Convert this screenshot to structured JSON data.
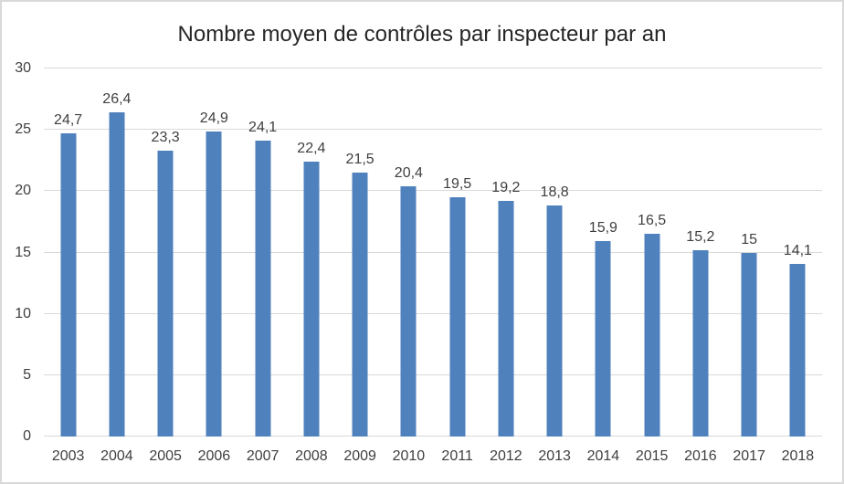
{
  "chart_data": {
    "type": "bar",
    "title": "Nombre moyen de contrôles par inspecteur par an",
    "categories": [
      "2003",
      "2004",
      "2005",
      "2006",
      "2007",
      "2008",
      "2009",
      "2010",
      "2011",
      "2012",
      "2013",
      "2014",
      "2015",
      "2016",
      "2017",
      "2018"
    ],
    "values": [
      24.7,
      26.4,
      23.3,
      24.9,
      24.1,
      22.4,
      21.5,
      20.4,
      19.5,
      19.2,
      18.8,
      15.9,
      16.5,
      15.2,
      15,
      14.1
    ],
    "value_labels": [
      "24,7",
      "26,4",
      "23,3",
      "24,9",
      "24,1",
      "22,4",
      "21,5",
      "20,4",
      "19,5",
      "19,2",
      "18,8",
      "15,9",
      "16,5",
      "15,2",
      "15",
      "14,1"
    ],
    "xlabel": "",
    "ylabel": "",
    "ylim": [
      0,
      30
    ],
    "yticks": [
      0,
      5,
      10,
      15,
      20,
      25,
      30
    ],
    "grid": "horizontal",
    "legend": "none",
    "bar_color": "#4f81bd",
    "gridline_color": "#d9d9d9",
    "label_color": "#3f3f3f",
    "title_color": "#262626",
    "frame_border_color": "#d9d9d9",
    "background_color": "#ffffff"
  }
}
